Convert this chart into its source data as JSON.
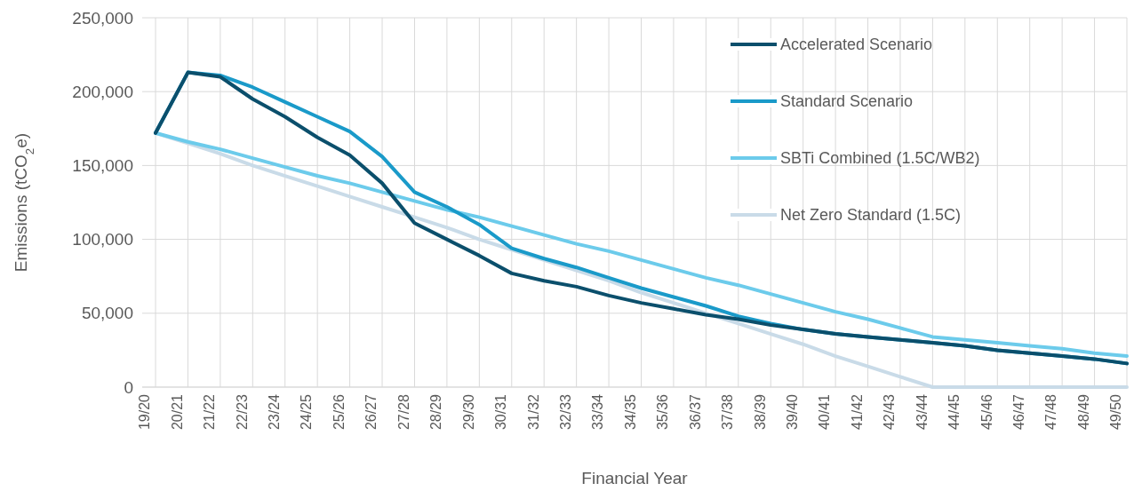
{
  "chart_data": {
    "type": "line",
    "xlabel": "Financial Year",
    "ylabel": "Emissions (tCO$_{2}$e)",
    "categories": [
      "19/20",
      "20/21",
      "21/22",
      "22/23",
      "23/24",
      "24/25",
      "25/26",
      "26/27",
      "27/28",
      "28/29",
      "29/30",
      "30/31",
      "31/32",
      "32/33",
      "33/34",
      "34/35",
      "35/36",
      "36/37",
      "37/38",
      "38/39",
      "39/40",
      "40/41",
      "41/42",
      "42/43",
      "43/44",
      "44/45",
      "45/46",
      "46/47",
      "47/48",
      "48/49",
      "49/50"
    ],
    "ylim": [
      0,
      250000
    ],
    "yticks": [
      {
        "value": 0,
        "label": "0"
      },
      {
        "value": 50000,
        "label": "50,000"
      },
      {
        "value": 100000,
        "label": "100,000"
      },
      {
        "value": 150000,
        "label": "150,000"
      },
      {
        "value": 200000,
        "label": "200,000"
      },
      {
        "value": 250000,
        "label": "250,000"
      }
    ],
    "grid": true,
    "legend": "top right",
    "marker": "none",
    "line_style": "solid",
    "series": [
      {
        "name": "Net Zero Standard (1.5C)",
        "color": "#c9dbe8",
        "values": [
          172000,
          165000,
          158000,
          150000,
          143000,
          136000,
          129000,
          122000,
          115000,
          108000,
          100000,
          93000,
          86000,
          79000,
          72000,
          64000,
          57000,
          50000,
          43000,
          36000,
          29000,
          21000,
          14000,
          7000,
          0,
          0,
          0,
          0,
          0,
          0,
          0
        ]
      },
      {
        "name": "SBTi Combined (1.5C/WB2)",
        "color": "#6ccbeb",
        "values": [
          172000,
          166000,
          161000,
          155000,
          149000,
          143000,
          138000,
          132000,
          126000,
          120000,
          115000,
          109000,
          103000,
          97000,
          92000,
          86000,
          80000,
          74000,
          69000,
          63000,
          57000,
          51000,
          46000,
          40000,
          34000,
          32000,
          30000,
          28000,
          26000,
          23000,
          21000
        ]
      },
      {
        "name": "Standard Scenario",
        "color": "#1a9ac9",
        "values": [
          172000,
          213000,
          211000,
          203000,
          193000,
          183000,
          173000,
          156000,
          132000,
          122000,
          110000,
          94000,
          87000,
          81000,
          74000,
          67000,
          61000,
          55000,
          48000,
          43000,
          39000,
          36000,
          34000,
          32000,
          30000,
          28000,
          25000,
          23000,
          21000,
          19000,
          16000
        ]
      },
      {
        "name": "Accelerated Scenario",
        "color": "#0b4f6c",
        "values": [
          172000,
          213000,
          210000,
          195000,
          183000,
          169000,
          157000,
          138000,
          111000,
          100000,
          89000,
          77000,
          72000,
          68000,
          62000,
          57000,
          53000,
          49000,
          46000,
          42000,
          39000,
          36000,
          34000,
          32000,
          30000,
          28000,
          25000,
          23000,
          21000,
          19000,
          16000
        ]
      }
    ]
  }
}
